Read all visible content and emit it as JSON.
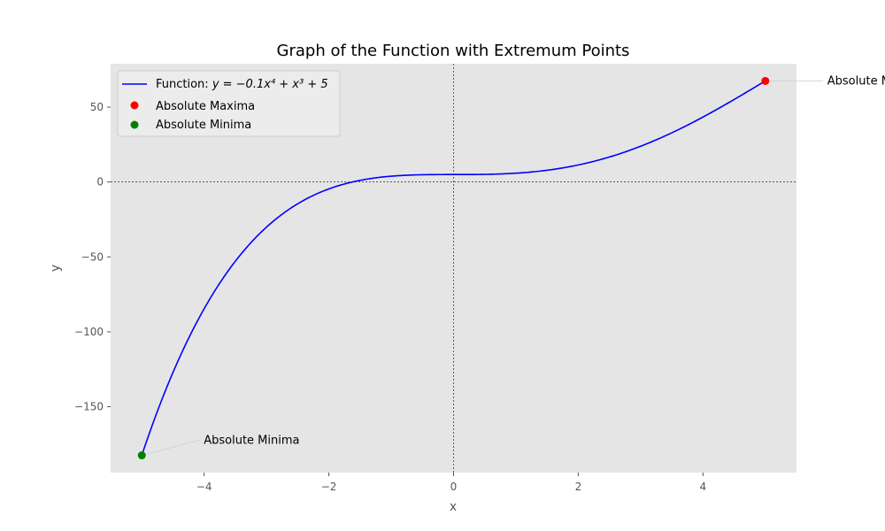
{
  "chart_data": {
    "type": "line",
    "title": "Graph of the Function with Extremum Points",
    "xlabel": "x",
    "ylabel": "y",
    "xlim": [
      -5.5,
      5.5
    ],
    "ylim": [
      -194,
      79
    ],
    "grid": false,
    "x_ticks": [
      -4,
      -2,
      0,
      2,
      4
    ],
    "x_tick_labels": [
      "−4",
      "−2",
      "0",
      "2",
      "4"
    ],
    "y_ticks": [
      50,
      0,
      -50,
      -100,
      -150
    ],
    "y_tick_labels": [
      "50",
      "0",
      "−50",
      "−100",
      "−150"
    ],
    "reference_lines": {
      "x": 0,
      "y": 0,
      "style": "dashed",
      "color": "#000000"
    },
    "function": {
      "a4": -0.1,
      "a3": 1,
      "a0": 5,
      "x_range": [
        -5,
        5
      ]
    },
    "series": [
      {
        "name": "Function: y = −0.1x⁴ + x³ + 5",
        "kind": "line",
        "color": "#0000ff"
      },
      {
        "name": "Absolute Maxima",
        "kind": "scatter",
        "color": "#ff0000",
        "points": [
          [
            5,
            67.5
          ]
        ]
      },
      {
        "name": "Absolute Minima",
        "kind": "scatter",
        "color": "#008000",
        "points": [
          [
            -5,
            -182.5
          ]
        ]
      }
    ],
    "legend": {
      "placement": "top-left",
      "function_prefix": "Function: ",
      "function_formula": "y = −0.1x⁴ + x³ + 5",
      "maxima_label": "Absolute Maxima",
      "minima_label": "Absolute Minima"
    },
    "annotations": [
      {
        "text": "Absolute Maxima",
        "x": 5,
        "y": 67.5
      },
      {
        "text": "Absolute Minima",
        "x": -5,
        "y": -182.5
      }
    ],
    "colors": {
      "plot_background": "#e5e5e5",
      "curve": "#0000ff",
      "maxima": "#ff0000",
      "minima": "#008000"
    }
  }
}
